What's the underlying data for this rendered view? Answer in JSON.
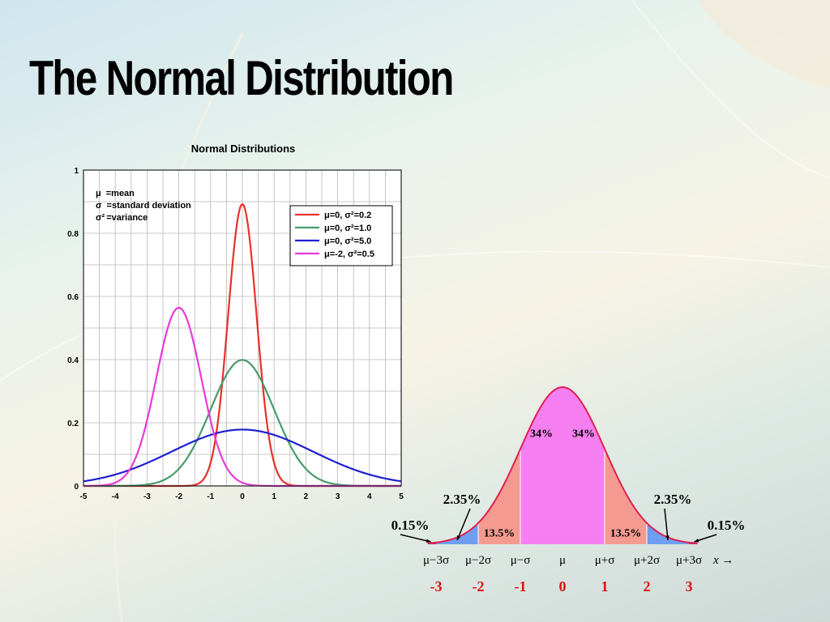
{
  "slide": {
    "title": "The Normal Distribution"
  },
  "chart_data": [
    {
      "type": "line",
      "title": "Normal Distributions",
      "xlim": [
        -5,
        5
      ],
      "ylim": [
        0,
        1
      ],
      "x_ticks": [
        "-5",
        "-4",
        "-3",
        "-2",
        "-1",
        "0",
        "1",
        "2",
        "3",
        "4",
        "5"
      ],
      "y_ticks": [
        {
          "value": 0,
          "label": "0"
        },
        {
          "value": 0.2,
          "label": "0.2"
        },
        {
          "value": 0.4,
          "label": "0.4"
        },
        {
          "value": 0.6,
          "label": "0.6"
        },
        {
          "value": 0.8,
          "label": "0.8"
        },
        {
          "value": 1,
          "label": "1"
        }
      ],
      "grid": true,
      "legend_placement": "top-right",
      "notes": [
        {
          "symbol": "μ",
          "text": "=mean"
        },
        {
          "symbol": "σ",
          "text": "=standard deviation"
        },
        {
          "symbol": "σ²",
          "text": "=variance"
        }
      ],
      "series": [
        {
          "name": "μ=0, σ²=0.2",
          "mean": 0,
          "variance": 0.2,
          "color": "#e8312a"
        },
        {
          "name": "μ=0, σ²=1.0",
          "mean": 0,
          "variance": 1.0,
          "color": "#4a9a6c"
        },
        {
          "name": "μ=0, σ²=5.0",
          "mean": 0,
          "variance": 5.0,
          "color": "#1f1fd0"
        },
        {
          "name": "μ=-2, σ²=0.5",
          "mean": -2,
          "variance": 0.5,
          "color": "#e83ad8"
        }
      ]
    },
    {
      "type": "area",
      "xlim": [
        -3.2,
        3.2
      ],
      "colors": {
        "center": "#f57ff0",
        "middle": "#f49a90",
        "tail": "#6e9ef0",
        "curve": "#e02050",
        "zlabel": "#e01010"
      },
      "region_labels": [
        {
          "text": "34%",
          "x": -0.5,
          "y_frac": 0.28
        },
        {
          "text": "34%",
          "x": 0.5,
          "y_frac": 0.28
        },
        {
          "text": "13.5%",
          "x": -1.5,
          "y_frac": 0.05
        },
        {
          "text": "13.5%",
          "x": 1.5,
          "y_frac": 0.05
        }
      ],
      "callouts": [
        {
          "text": "2.35%",
          "side": "left"
        },
        {
          "text": "2.35%",
          "side": "right"
        },
        {
          "text": "0.15%",
          "side": "left"
        },
        {
          "text": "0.15%",
          "side": "right"
        }
      ],
      "x_tick_labels": [
        "μ−3σ",
        "μ−2σ",
        "μ−σ",
        "μ",
        "μ+σ",
        "μ+2σ",
        "μ+3σ"
      ],
      "x_axis_label": "x →",
      "z_labels": [
        "-3",
        "-2",
        "-1",
        "0",
        "1",
        "2",
        "3"
      ]
    }
  ]
}
